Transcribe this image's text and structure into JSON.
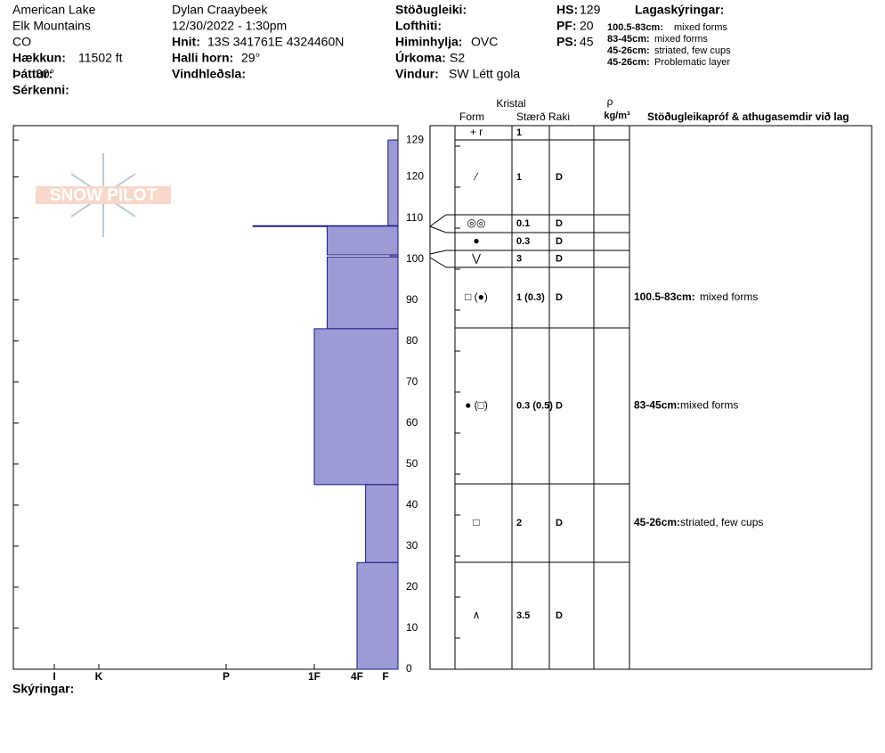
{
  "header": {
    "site": [
      "American Lake",
      "Elk Mountains",
      "CO"
    ],
    "fields1": [
      {
        "label": "Hækkun:",
        "value": "11502 ft"
      },
      {
        "label": "Þáttur:",
        "value": "30°"
      },
      {
        "label": "Sérkenni:"
      }
    ],
    "observer": "Dylan Craaybeek",
    "datetime": "12/30/2022 - 1:30pm",
    "fields2": [
      {
        "label": "Hnit:",
        "value": "13S 341761E 4324460N"
      },
      {
        "label": "Halli horn:",
        "value": "29°"
      },
      {
        "label": "Vindhleðsla:"
      }
    ],
    "fields3": [
      {
        "label": "Stöðugleiki:"
      },
      {
        "label": "Lofthiti:"
      },
      {
        "label": "Himinhylja:",
        "value": "OVC"
      },
      {
        "label": "Úrkoma:",
        "value": "S2"
      },
      {
        "label": "Vindur:",
        "value": "SW Létt gola"
      }
    ],
    "fields4": [
      {
        "label": "HS:",
        "value": "129"
      },
      {
        "label": "PF:",
        "value": "20"
      },
      {
        "label": "PS:",
        "value": "45"
      }
    ]
  },
  "legend": {
    "title": "Lagaskýringar:",
    "items": [
      {
        "range": "100.5-83cm:",
        "text": "mixed forms"
      },
      {
        "range": "83-45cm:",
        "text": "mixed forms"
      },
      {
        "range": "45-26cm:",
        "text": "striated, few cups"
      },
      {
        "range": "45-26cm:",
        "text": "Problematic layer"
      }
    ]
  },
  "logo": "SNOW PILOT",
  "table": {
    "headers": {
      "crystal": "Kristal",
      "form": "Form",
      "size": "Stærð",
      "moisture": "Raki",
      "density": "ρ",
      "density_unit": "kg/m³",
      "comments": "Stöðugleikapróf & athugasemdir við lag"
    },
    "rows": [
      {
        "form": "+ r",
        "size": "1"
      },
      {
        "form": "⁄",
        "size": "1",
        "moisture": "D"
      },
      {
        "form": "◎◎",
        "size": "0.1",
        "moisture": "D"
      },
      {
        "form": "●",
        "size": "0.3",
        "moisture": "D"
      },
      {
        "form": "⋁",
        "size": "3",
        "moisture": "D"
      },
      {
        "form": "□ (●)",
        "size": "1 (0.3)",
        "moisture": "D",
        "comment_range": "100.5-83cm:",
        "comment": "mixed forms"
      },
      {
        "form": "● (□)",
        "size": "0.3 (0.5)",
        "moisture": "D",
        "comment_range": "83-45cm:",
        "comment": "mixed forms"
      },
      {
        "form": "□",
        "size": "2",
        "moisture": "D",
        "comment_range": "45-26cm:",
        "comment": "striated, few cups"
      },
      {
        "form": "∧",
        "size": "3.5",
        "moisture": "D"
      }
    ]
  },
  "footer": "Skýringar:",
  "chart_data": {
    "type": "hardness_profile",
    "color": "#9b9bd6",
    "edge_color": "#1a1a80",
    "ylim": [
      0,
      132.5
    ],
    "yticks": [
      0,
      10,
      20,
      30,
      40,
      50,
      60,
      70,
      80,
      90,
      100,
      110,
      120,
      129
    ],
    "xlim": [
      7,
      0.5
    ],
    "xticks": [
      {
        "value": 6,
        "label": "I"
      },
      {
        "value": 5,
        "label": "K"
      },
      {
        "value": 4,
        "label": "P"
      },
      {
        "value": 3,
        "label": "1F"
      },
      {
        "value": 2,
        "label": "4F"
      },
      {
        "value": 1,
        "label": "F"
      }
    ],
    "tops": [
      129,
      108,
      108,
      101,
      100.5,
      83,
      45,
      26
    ],
    "bottoms": [
      108,
      108,
      101,
      100.5,
      83,
      45,
      26,
      0
    ],
    "hardness": [
      0.9,
      3.7,
      2.7,
      0.8,
      2.7,
      3.0,
      1.7,
      2.0
    ]
  }
}
